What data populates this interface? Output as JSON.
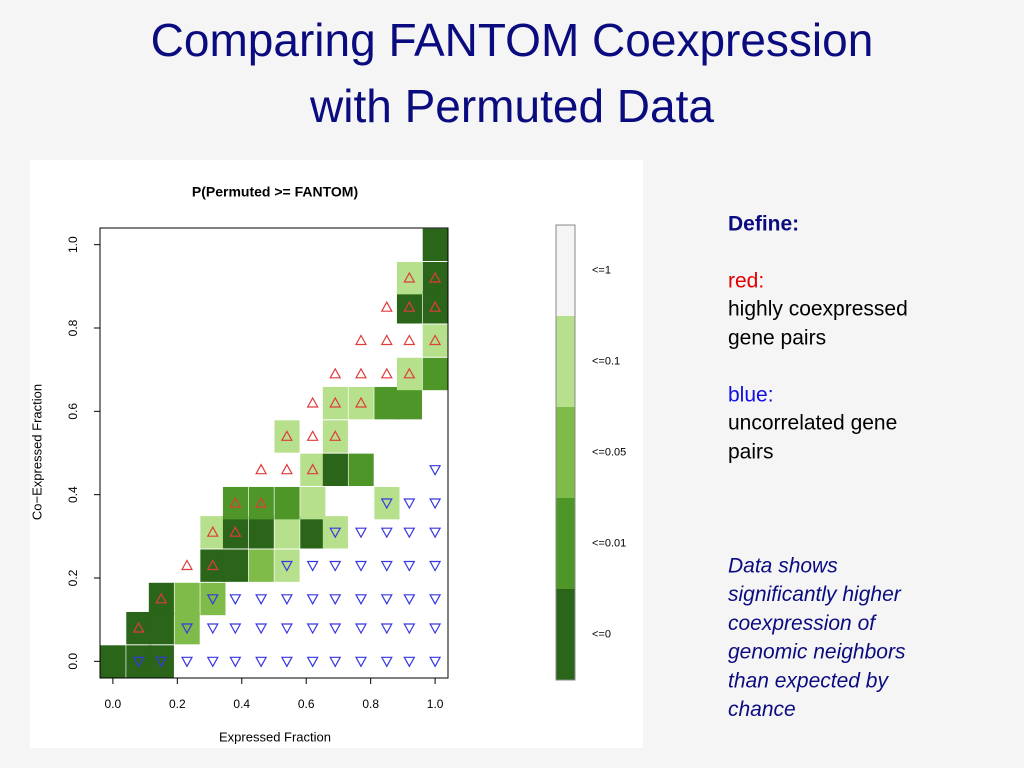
{
  "slide": {
    "title": [
      "Comparing FANTOM Coexpression",
      "with Permuted Data"
    ],
    "define": "Define:",
    "red_label": "red:",
    "red_text": [
      "highly coexpressed",
      "gene pairs"
    ],
    "blue_label": "blue:",
    "blue_text": [
      "uncorrelated gene",
      "pairs"
    ],
    "note": [
      "Data shows",
      "significantly higher",
      "coexpression of",
      "genomic neighbors",
      "than expected by",
      "chance"
    ]
  },
  "chart_data": {
    "type": "heatmap",
    "title": "P(Permuted >= FANTOM)",
    "x_label": "Expressed Fraction",
    "y_label": "Co−Expressed Fraction",
    "xlim": [
      -0.04,
      1.04
    ],
    "ylim": [
      -0.04,
      1.04
    ],
    "xticks": [
      {
        "value": 0,
        "label": "0.0"
      },
      0.2,
      0.4,
      0.6,
      0.8,
      {
        "value": 1,
        "label": "1.0"
      }
    ],
    "yticks": [
      {
        "value": 0,
        "label": "0.0"
      },
      0.2,
      0.4,
      0.6,
      0.8,
      {
        "value": 1,
        "label": "1.0"
      }
    ],
    "bin_width": 0.077,
    "colorbar": [
      {
        "label": "<=1",
        "value": 1,
        "color": "#f5f5f5"
      },
      {
        "label": "<=0.1",
        "value": 0.1,
        "color": "#b7e08c"
      },
      {
        "label": "<=0.05",
        "value": 0.05,
        "color": "#7ebb48"
      },
      {
        "label": "<=0.01",
        "value": 0.01,
        "color": "#4e9628"
      },
      {
        "label": "<=0",
        "value": 0,
        "color": "#2a6519"
      }
    ],
    "cells": [
      {
        "x": 0,
        "y": 0,
        "p": 0
      },
      {
        "x": 0.08,
        "y": 0,
        "p": 0
      },
      {
        "x": 0.15,
        "y": 0,
        "p": 0
      },
      {
        "x": 0.08,
        "y": 0.08,
        "p": 0
      },
      {
        "x": 0.15,
        "y": 0.08,
        "p": 0
      },
      {
        "x": 0.23,
        "y": 0.08,
        "p": 0.05
      },
      {
        "x": 0.15,
        "y": 0.15,
        "p": 0
      },
      {
        "x": 0.23,
        "y": 0.15,
        "p": 0.05
      },
      {
        "x": 0.31,
        "y": 0.15,
        "p": 0.05
      },
      {
        "x": 0.31,
        "y": 0.23,
        "p": 0
      },
      {
        "x": 0.38,
        "y": 0.23,
        "p": 0
      },
      {
        "x": 0.46,
        "y": 0.23,
        "p": 0.05
      },
      {
        "x": 0.54,
        "y": 0.23,
        "p": 0.1
      },
      {
        "x": 0.31,
        "y": 0.31,
        "p": 0.1
      },
      {
        "x": 0.38,
        "y": 0.31,
        "p": 0
      },
      {
        "x": 0.46,
        "y": 0.31,
        "p": 0
      },
      {
        "x": 0.54,
        "y": 0.31,
        "p": 0.1
      },
      {
        "x": 0.62,
        "y": 0.31,
        "p": 0
      },
      {
        "x": 0.69,
        "y": 0.31,
        "p": 0.1
      },
      {
        "x": 0.38,
        "y": 0.38,
        "p": 0.01
      },
      {
        "x": 0.46,
        "y": 0.38,
        "p": 0.01
      },
      {
        "x": 0.54,
        "y": 0.38,
        "p": 0.01
      },
      {
        "x": 0.62,
        "y": 0.38,
        "p": 0.1
      },
      {
        "x": 0.85,
        "y": 0.38,
        "p": 0.1
      },
      {
        "x": 0.62,
        "y": 0.46,
        "p": 0.1
      },
      {
        "x": 0.69,
        "y": 0.46,
        "p": 0
      },
      {
        "x": 0.77,
        "y": 0.46,
        "p": 0.01
      },
      {
        "x": 0.54,
        "y": 0.54,
        "p": 0.1
      },
      {
        "x": 0.69,
        "y": 0.54,
        "p": 0.1
      },
      {
        "x": 0.69,
        "y": 0.62,
        "p": 0.1
      },
      {
        "x": 0.77,
        "y": 0.62,
        "p": 0.1
      },
      {
        "x": 0.85,
        "y": 0.62,
        "p": 0.01
      },
      {
        "x": 0.92,
        "y": 0.62,
        "p": 0.01
      },
      {
        "x": 0.92,
        "y": 0.69,
        "p": 0.1
      },
      {
        "x": 1,
        "y": 0.69,
        "p": 0.01
      },
      {
        "x": 1,
        "y": 0.77,
        "p": 0.1
      },
      {
        "x": 0.92,
        "y": 0.85,
        "p": 0
      },
      {
        "x": 1,
        "y": 0.85,
        "p": 0
      },
      {
        "x": 0.92,
        "y": 0.92,
        "p": 0.1
      },
      {
        "x": 1,
        "y": 0.92,
        "p": 0
      },
      {
        "x": 1,
        "y": 1,
        "p": 0
      }
    ],
    "markers": {
      "up": {
        "color": "#e03c3c",
        "x": [
          0.08,
          0.15,
          0.23,
          0.31,
          0.31,
          0.38,
          0.38,
          0.46,
          0.46,
          0.54,
          0.62,
          0.54,
          0.62,
          0.69,
          0.62,
          0.69,
          0.77,
          0.69,
          0.77,
          0.85,
          0.92,
          0.77,
          0.85,
          0.92,
          1,
          0.85,
          0.92,
          1,
          0.92,
          1
        ],
        "y": [
          0.08,
          0.15,
          0.23,
          0.23,
          0.31,
          0.31,
          0.38,
          0.38,
          0.46,
          0.46,
          0.46,
          0.54,
          0.54,
          0.54,
          0.62,
          0.62,
          0.62,
          0.69,
          0.69,
          0.69,
          0.69,
          0.77,
          0.77,
          0.77,
          0.77,
          0.85,
          0.85,
          0.85,
          0.92,
          0.92
        ]
      },
      "down": {
        "color": "#3838e0",
        "x": [
          0.08,
          0.15,
          0.23,
          0.31,
          0.38,
          0.46,
          0.54,
          0.62,
          0.69,
          0.77,
          0.85,
          0.92,
          1,
          0.23,
          0.31,
          0.38,
          0.46,
          0.54,
          0.62,
          0.69,
          0.77,
          0.85,
          0.92,
          1,
          0.31,
          0.38,
          0.46,
          0.54,
          0.62,
          0.69,
          0.77,
          0.85,
          0.92,
          1,
          0.54,
          0.62,
          0.69,
          0.77,
          0.85,
          0.92,
          1,
          0.69,
          0.77,
          0.85,
          0.92,
          1,
          0.85,
          0.92,
          1,
          1
        ],
        "y": [
          0,
          0,
          0,
          0,
          0,
          0,
          0,
          0,
          0,
          0,
          0,
          0,
          0,
          0.08,
          0.08,
          0.08,
          0.08,
          0.08,
          0.08,
          0.08,
          0.08,
          0.08,
          0.08,
          0.08,
          0.15,
          0.15,
          0.15,
          0.15,
          0.15,
          0.15,
          0.15,
          0.15,
          0.15,
          0.15,
          0.23,
          0.23,
          0.23,
          0.23,
          0.23,
          0.23,
          0.23,
          0.31,
          0.31,
          0.31,
          0.31,
          0.31,
          0.38,
          0.38,
          0.38,
          0.46
        ]
      }
    }
  }
}
